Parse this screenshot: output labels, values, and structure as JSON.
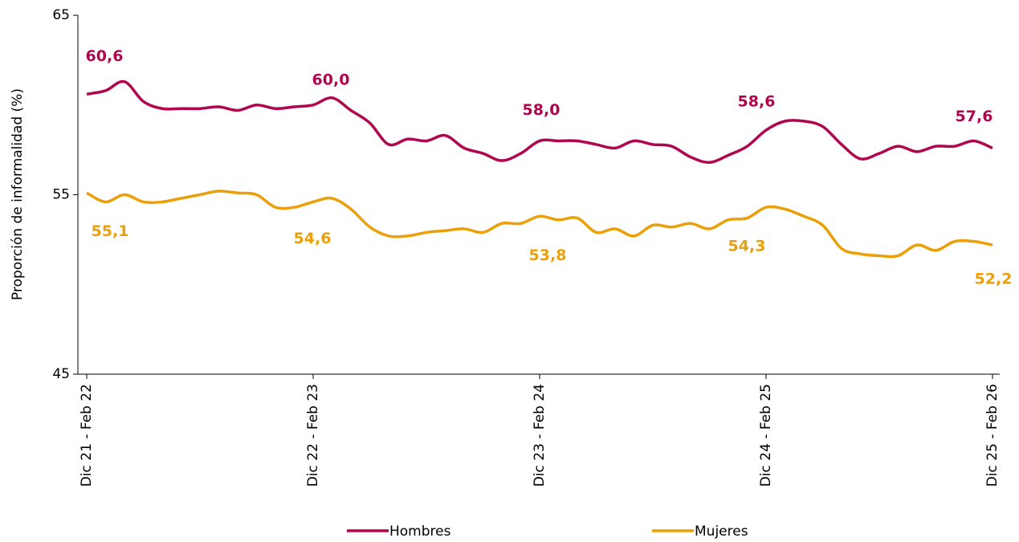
{
  "chart_data": {
    "type": "line",
    "y_label": "Proporción de informalidad (%)",
    "categories": [
      "Dic 21 - Feb 22",
      null,
      null,
      null,
      null,
      null,
      null,
      null,
      null,
      null,
      null,
      null,
      "Dic 22 - Feb 23",
      null,
      null,
      null,
      null,
      null,
      null,
      null,
      null,
      null,
      null,
      null,
      "Dic 23 - Feb 24",
      null,
      null,
      null,
      null,
      null,
      null,
      null,
      null,
      null,
      null,
      null,
      "Dic 24 - Feb 25",
      null,
      null,
      null,
      null,
      null,
      null,
      null,
      null,
      null,
      null,
      null,
      "Dic 25 - Feb 26"
    ],
    "series": [
      {
        "name": "Hombres",
        "color": "#b0064f",
        "values": [
          60.6,
          60.8,
          61.3,
          60.2,
          59.8,
          59.8,
          59.8,
          59.9,
          59.7,
          60.0,
          59.8,
          59.9,
          60.0,
          60.4,
          59.7,
          59.0,
          57.8,
          58.1,
          58.0,
          58.3,
          57.6,
          57.3,
          56.9,
          57.3,
          58.0,
          58.0,
          58.0,
          57.8,
          57.6,
          58.0,
          57.8,
          57.7,
          57.1,
          56.8,
          57.2,
          57.7,
          58.6,
          59.1,
          59.1,
          58.8,
          57.8,
          57.0,
          57.3,
          57.7,
          57.4,
          57.7,
          57.7,
          58.0,
          57.6
        ],
        "value_labels": [
          "60,6",
          null,
          null,
          null,
          null,
          null,
          null,
          null,
          null,
          null,
          null,
          null,
          "60,0",
          null,
          null,
          null,
          null,
          null,
          null,
          null,
          null,
          null,
          null,
          null,
          "58,0",
          null,
          null,
          null,
          null,
          null,
          null,
          null,
          null,
          null,
          null,
          null,
          "58,6",
          null,
          null,
          null,
          null,
          null,
          null,
          null,
          null,
          null,
          null,
          null,
          "57,6"
        ]
      },
      {
        "name": "Mujeres",
        "color": "#eba00a",
        "values": [
          55.1,
          54.6,
          55.0,
          54.6,
          54.6,
          54.8,
          55.0,
          55.2,
          55.1,
          55.0,
          54.3,
          54.3,
          54.6,
          54.8,
          54.2,
          53.2,
          52.7,
          52.7,
          52.9,
          53.0,
          53.1,
          52.9,
          53.4,
          53.4,
          53.8,
          53.6,
          53.7,
          52.9,
          53.1,
          52.7,
          53.3,
          53.2,
          53.4,
          53.1,
          53.6,
          53.7,
          54.3,
          54.2,
          53.8,
          53.3,
          52.0,
          51.7,
          51.6,
          51.6,
          52.2,
          51.9,
          52.4,
          52.4,
          52.2
        ],
        "value_labels": [
          "55,1",
          null,
          null,
          null,
          null,
          null,
          null,
          null,
          null,
          null,
          null,
          null,
          "54,6",
          null,
          null,
          null,
          null,
          null,
          null,
          null,
          null,
          null,
          null,
          null,
          "53,8",
          null,
          null,
          null,
          null,
          null,
          null,
          null,
          null,
          null,
          null,
          null,
          "54,3",
          null,
          null,
          null,
          null,
          null,
          null,
          null,
          null,
          null,
          null,
          null,
          "52,2"
        ]
      }
    ],
    "ylim": [
      45,
      65
    ],
    "yticks": [
      45,
      55,
      65
    ],
    "grid": false,
    "legend": "bottom"
  }
}
